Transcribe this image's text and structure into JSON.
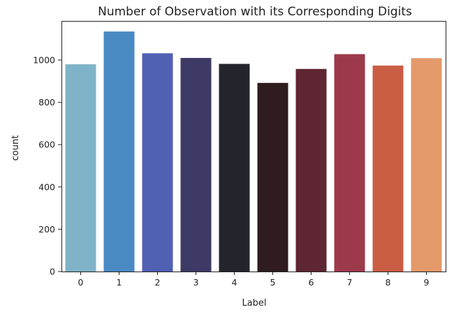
{
  "chart_data": {
    "type": "bar",
    "title": "Number of Observation with its Corresponding Digits",
    "xlabel": "Label",
    "ylabel": "count",
    "categories": [
      "0",
      "1",
      "2",
      "3",
      "4",
      "5",
      "6",
      "7",
      "8",
      "9"
    ],
    "values": [
      980,
      1135,
      1032,
      1010,
      982,
      892,
      958,
      1028,
      974,
      1009
    ],
    "ylim": [
      0,
      1185
    ],
    "yticks": [
      "0",
      "200",
      "400",
      "600",
      "800",
      "1000"
    ],
    "grid": false,
    "colors": [
      "#7fb3c8",
      "#4a8ac3",
      "#5060b2",
      "#3d3b66",
      "#24252c",
      "#2f1c1e",
      "#5e2632",
      "#9c3a4b",
      "#c95e44",
      "#e4996a"
    ]
  }
}
